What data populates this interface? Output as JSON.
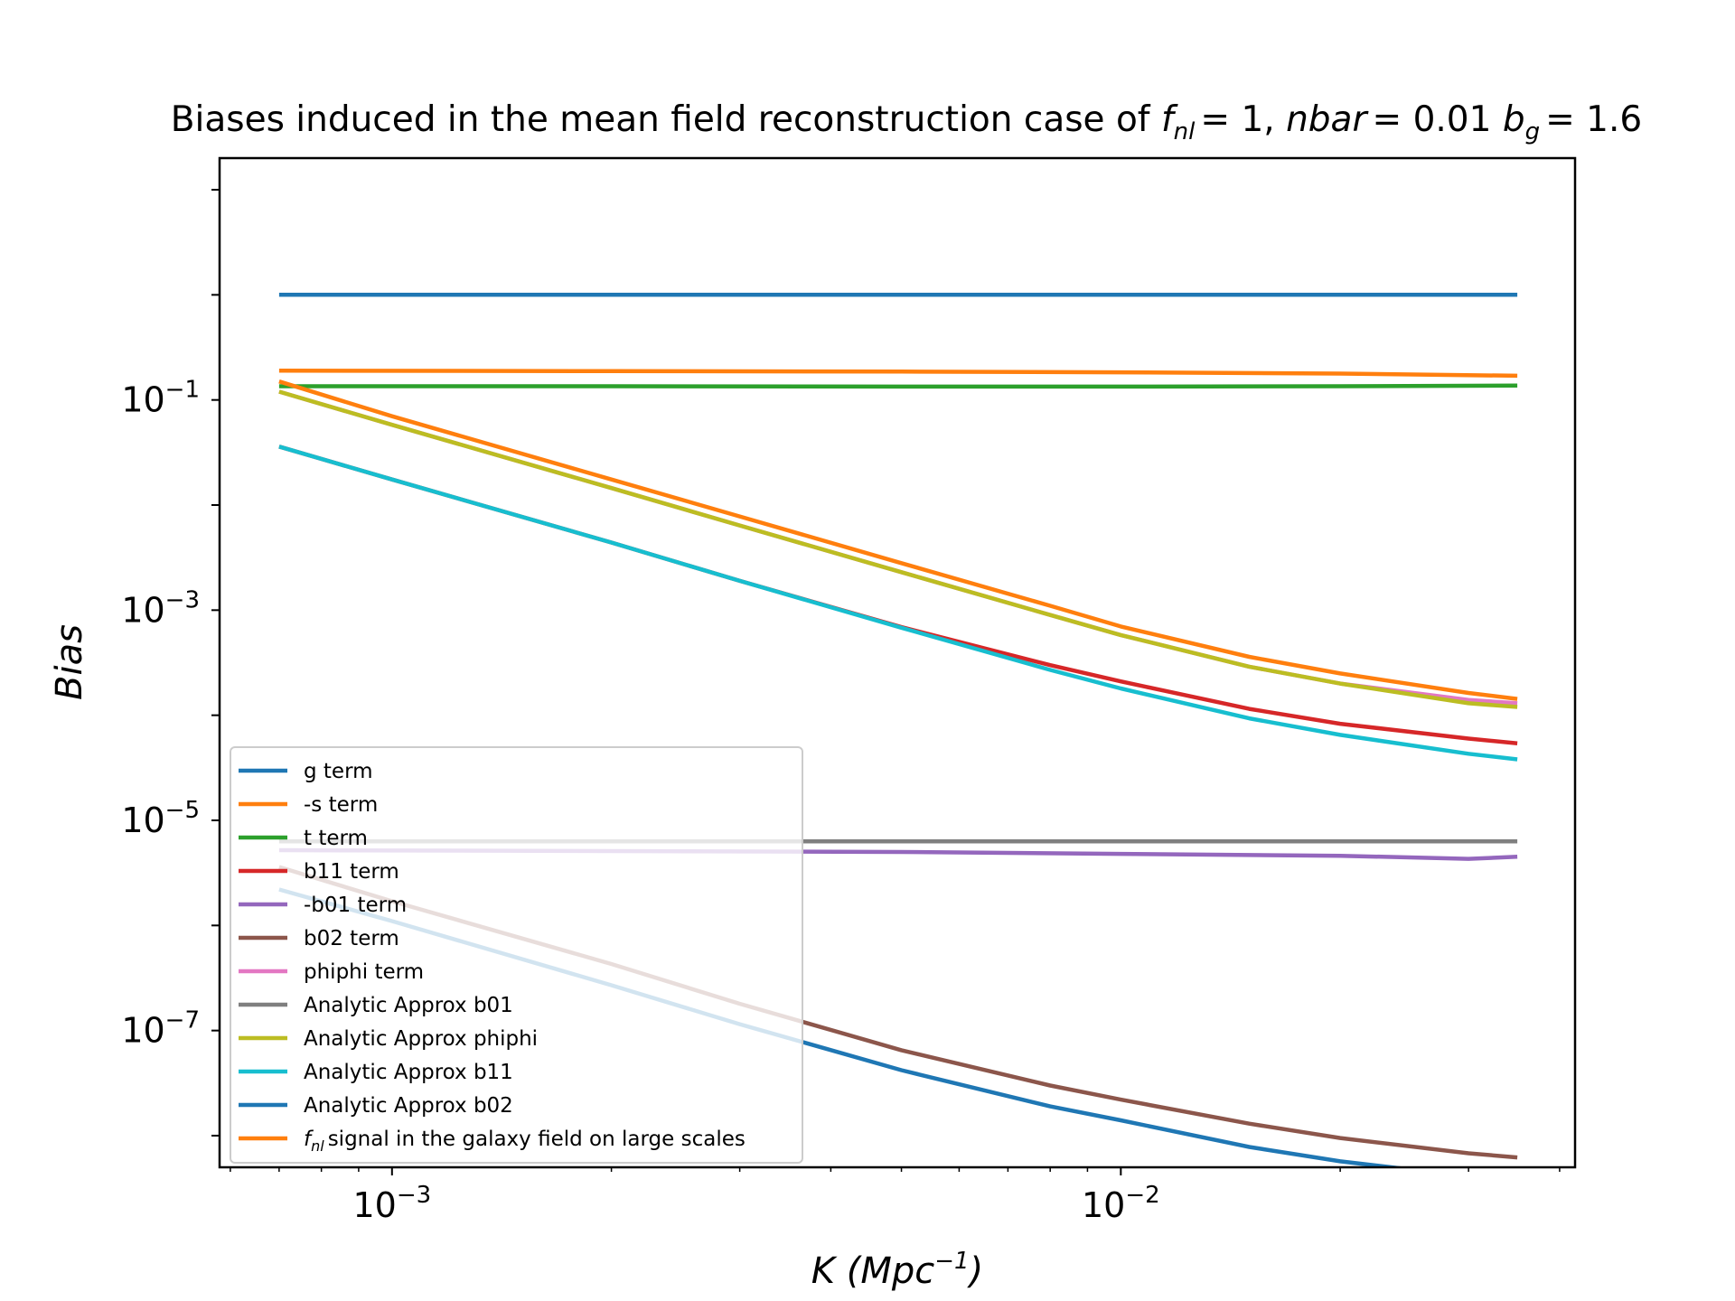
{
  "chart_data": {
    "type": "line",
    "title_prefix": "Biases induced in the mean field reconstruction case of ",
    "title_math": {
      "fnl_symbol": "f",
      "fnl_sub": "nl",
      "fnl_value": "= 1,",
      "nbar_symbol": "nbar",
      "nbar_value": "= 0.01",
      "bg_symbol": "b",
      "bg_sub": "g",
      "bg_value": "= 1.6"
    },
    "xlabel_main": "K (Mpc",
    "xlabel_exp": "−1",
    "xlabel_close": ")",
    "ylabel": "Bias",
    "x_scale": "log",
    "y_scale": "log",
    "xlim": [
      0.00058,
      0.042
    ],
    "ylim": [
      5e-09,
      20
    ],
    "x_ticks": [
      {
        "value": 0.001,
        "base": "10",
        "exp": "−3"
      },
      {
        "value": 0.01,
        "base": "10",
        "exp": "−2"
      }
    ],
    "y_ticks": [
      {
        "value": 0.1,
        "base": "10",
        "exp": "−1"
      },
      {
        "value": 0.001,
        "base": "10",
        "exp": "−3"
      },
      {
        "value": 1e-05,
        "base": "10",
        "exp": "−5"
      },
      {
        "value": 1e-07,
        "base": "10",
        "exp": "−7"
      }
    ],
    "grid": false,
    "legend_position": "lower-left",
    "series": [
      {
        "name": "g term",
        "color": "#1f77b4",
        "x": [
          0.0007,
          0.002,
          0.005,
          0.01,
          0.02,
          0.035
        ],
        "y": [
          1.0,
          1.0,
          1.0,
          1.0,
          1.0,
          1.0
        ]
      },
      {
        "name": "-s term",
        "color": "#ff7f0e",
        "x": [
          0.0007,
          0.002,
          0.005,
          0.01,
          0.02,
          0.035
        ],
        "y": [
          0.19,
          0.188,
          0.186,
          0.183,
          0.178,
          0.17
        ]
      },
      {
        "name": "t term",
        "color": "#2ca02c",
        "x": [
          0.0007,
          0.002,
          0.005,
          0.01,
          0.02,
          0.035
        ],
        "y": [
          0.135,
          0.135,
          0.134,
          0.134,
          0.135,
          0.137
        ]
      },
      {
        "name": "b11 term",
        "color": "#d62728",
        "x": [
          0.0007,
          0.001,
          0.002,
          0.003,
          0.005,
          0.008,
          0.01,
          0.015,
          0.02,
          0.03,
          0.035
        ],
        "y": [
          0.036,
          0.0175,
          0.0044,
          0.0019,
          0.00069,
          0.0003,
          0.00021,
          0.000115,
          8.3e-05,
          6e-05,
          5.4e-05
        ]
      },
      {
        "name": "-b01 term",
        "color": "#9467bd",
        "x": [
          0.0007,
          0.002,
          0.005,
          0.01,
          0.02,
          0.03,
          0.035
        ],
        "y": [
          5.2e-06,
          5.1e-06,
          5e-06,
          4.8e-06,
          4.6e-06,
          4.3e-06,
          4.5e-06
        ]
      },
      {
        "name": "b02 term",
        "color": "#8c564b",
        "x": [
          0.0007,
          0.001,
          0.002,
          0.003,
          0.005,
          0.008,
          0.01,
          0.015,
          0.02,
          0.03,
          0.035
        ],
        "y": [
          3.6e-06,
          1.7e-06,
          4.3e-07,
          1.8e-07,
          6.5e-08,
          3e-08,
          2.2e-08,
          1.3e-08,
          9.5e-09,
          6.8e-09,
          6.2e-09
        ]
      },
      {
        "name": "phiphi term",
        "color": "#e377c2",
        "x": [
          0.0007,
          0.001,
          0.002,
          0.003,
          0.005,
          0.008,
          0.01,
          0.015,
          0.02,
          0.03,
          0.035
        ],
        "y": [
          0.12,
          0.058,
          0.0145,
          0.0064,
          0.0023,
          0.0009,
          0.00058,
          0.00029,
          0.0002,
          0.00014,
          0.00013
        ]
      },
      {
        "name": "Analytic Approx b01",
        "color": "#7f7f7f",
        "x": [
          0.0007,
          0.035
        ],
        "y": [
          6.3e-06,
          6.3e-06
        ]
      },
      {
        "name": "Analytic Approx phiphi",
        "color": "#bcbd22",
        "x": [
          0.0007,
          0.001,
          0.002,
          0.003,
          0.005,
          0.008,
          0.01,
          0.015,
          0.02,
          0.03,
          0.035
        ],
        "y": [
          0.12,
          0.058,
          0.0145,
          0.0064,
          0.0023,
          0.0009,
          0.00058,
          0.00029,
          0.0002,
          0.00013,
          0.00012
        ]
      },
      {
        "name": "Analytic Approx b11",
        "color": "#17becf",
        "x": [
          0.0007,
          0.001,
          0.002,
          0.003,
          0.005,
          0.008,
          0.01,
          0.015,
          0.02,
          0.03,
          0.035
        ],
        "y": [
          0.036,
          0.0175,
          0.0044,
          0.0019,
          0.00068,
          0.00027,
          0.00018,
          9.35e-05,
          6.5e-05,
          4.3e-05,
          3.8e-05
        ]
      },
      {
        "name": "Analytic Approx b02",
        "color": "#1f77b4",
        "x": [
          0.0007,
          0.001,
          0.002,
          0.003,
          0.005,
          0.008,
          0.01,
          0.015,
          0.02,
          0.03,
          0.035
        ],
        "y": [
          2.2e-06,
          1.1e-06,
          2.7e-07,
          1.15e-07,
          4.2e-08,
          1.9e-08,
          1.4e-08,
          7.8e-09,
          5.7e-09,
          4.1e-09,
          3.7e-09
        ]
      },
      {
        "name": "signal in the galaxy field on large scales",
        "name_prefix_symbol": "f",
        "name_prefix_sub": "nl",
        "color": "#ff7f0e",
        "x": [
          0.0007,
          0.001,
          0.002,
          0.003,
          0.005,
          0.008,
          0.01,
          0.015,
          0.02,
          0.03,
          0.035
        ],
        "y": [
          0.15,
          0.07,
          0.0175,
          0.0078,
          0.0028,
          0.0011,
          0.0007,
          0.00036,
          0.00025,
          0.000163,
          0.000143
        ]
      }
    ]
  }
}
